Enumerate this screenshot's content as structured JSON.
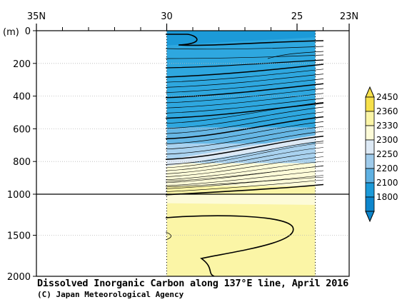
{
  "chart_data": {
    "type": "contour-section",
    "title": "Dissolved Inorganic Carbon along 137°E line, April 2016",
    "credit": "(C) Japan Meteorological Agency",
    "x_axis": {
      "ticks": [
        {
          "label": "35N",
          "lat": 35
        },
        {
          "label": "30",
          "lat": 30
        },
        {
          "label": "25",
          "lat": 25
        },
        {
          "label": "23N",
          "lat": 23
        }
      ],
      "range": [
        35,
        23
      ]
    },
    "y_axis": {
      "unit_label": "(m)",
      "ticks_upper": [
        0,
        200,
        400,
        600,
        800,
        1000
      ],
      "ticks_lower": [
        1500,
        2000
      ],
      "break_at": 1000,
      "range": [
        0,
        2000
      ]
    },
    "data_extent_lat": [
      30,
      24.3
    ],
    "colorbar": {
      "labels": [
        "2450",
        "2360",
        "2330",
        "2300",
        "2250",
        "2200",
        "2100",
        "1800"
      ],
      "colors": [
        "#f6e04a",
        "#fbf5a6",
        "#fdfbd8",
        "#dde9f5",
        "#9fcbeb",
        "#5fb1e2",
        "#1c9ad8",
        "#0d86cd"
      ]
    },
    "bands_depth_m": [
      {
        "range": [
          0,
          820
        ],
        "color": "#2ea7df"
      },
      {
        "range": [
          590,
          820
        ],
        "color": "#66b7e5"
      },
      {
        "range": [
          690,
          870
        ],
        "color": "#a9d2ef"
      },
      {
        "range": [
          810,
          950
        ],
        "color": "#fdfbd8"
      },
      {
        "range": [
          950,
          2000
        ],
        "color": "#fbf5a6"
      }
    ]
  }
}
